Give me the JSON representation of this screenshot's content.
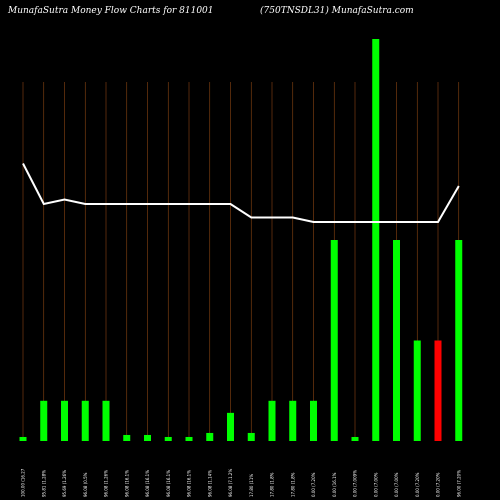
{
  "header": {
    "title_left": "MunafaSutra  Money Flow  Charts for 811001",
    "title_right": "(750TNSDL31) MunafaSutra.com"
  },
  "colors": {
    "background": "#000000",
    "up": "#00ff00",
    "down": "#ff0000",
    "line": "#ffffff",
    "grid": "#8b4513"
  },
  "chart_data": {
    "type": "bar",
    "title": "MunafaSutra  Money Flow  Charts for 811001",
    "subtitle": "(750TNSDL31) MunafaSutra.com",
    "categories": [
      "100.00 (16.27",
      "95.81 (1.28%",
      "95.69 (1.26%",
      "96.08 (0.5%",
      "96.08 (1.26%",
      "96.08 (16.1%",
      "96.08 (16.1%",
      "96.08 (16.1%",
      "96.08 (16.1%",
      "96.08 (1.14%",
      "96.08 (7.1.2%",
      "17.80 (11%",
      "17.80 (1.8%",
      "17.80 (1.8%",
      "0.00 (7.20%",
      "0.00 (16.1%",
      "0.00 (7.009%",
      "0.00 (7.00%",
      "0.00 (7.00%",
      "0.00 (7.20%",
      "0.00 (7.20%",
      "96.00 (7.20%"
    ],
    "values": [
      1,
      10,
      10,
      10,
      10,
      1.5,
      1.5,
      1,
      1,
      2,
      7,
      2,
      10,
      10,
      10,
      50,
      1,
      100,
      50,
      25,
      25,
      50
    ],
    "bar_colors": [
      "up",
      "up",
      "up",
      "up",
      "up",
      "up",
      "up",
      "up",
      "up",
      "up",
      "up",
      "up",
      "up",
      "up",
      "up",
      "up",
      "up",
      "up",
      "up",
      "up",
      "down",
      "up"
    ],
    "line_values": [
      67,
      58,
      59,
      58,
      58,
      58,
      58,
      58,
      58,
      58,
      58,
      55,
      55,
      55,
      54,
      54,
      54,
      54,
      54,
      54,
      54,
      62
    ],
    "ylim": [
      0,
      100
    ],
    "grid": true
  }
}
